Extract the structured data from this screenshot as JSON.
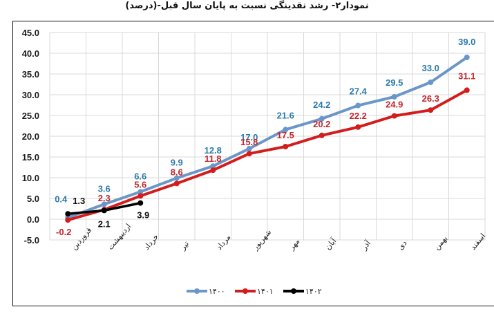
{
  "chart_data": {
    "type": "line",
    "title": "نمودار۲- رشد نقدینگی نسبت به پایان سال قبل-(درصد)",
    "xlabel": "",
    "ylabel": "",
    "categories": [
      "فروردین",
      "اردیبهشت",
      "خرداد",
      "تیر",
      "مرداد",
      "شهریور",
      "مهر",
      "آبان",
      "آذر",
      "دی",
      "بهمن",
      "اسفند"
    ],
    "yticks": [
      "45.0",
      "40.0",
      "35.0",
      "30.0",
      "25.0",
      "20.0",
      "15.0",
      "10.0",
      "5.0",
      "0.0",
      "-5.0"
    ],
    "ylim": [
      -5,
      45
    ],
    "grid": true,
    "legend_position": "bottom",
    "series": [
      {
        "name": "۱۴۰۰",
        "color": "#6b97c8",
        "label_color": "#2a7aa8",
        "values": [
          0.4,
          3.6,
          6.6,
          9.9,
          12.8,
          17.0,
          21.6,
          24.2,
          27.4,
          29.5,
          33.0,
          39.0
        ]
      },
      {
        "name": "۱۴۰۱",
        "color": "#d31d1d",
        "label_color": "#c0272d",
        "values": [
          -0.2,
          2.3,
          5.6,
          8.6,
          11.8,
          15.8,
          17.5,
          20.2,
          22.2,
          24.9,
          26.3,
          31.1
        ]
      },
      {
        "name": "۱۴۰۲",
        "color": "#000000",
        "label_color": "#111111",
        "values": [
          1.3,
          2.1,
          3.9
        ]
      }
    ]
  }
}
